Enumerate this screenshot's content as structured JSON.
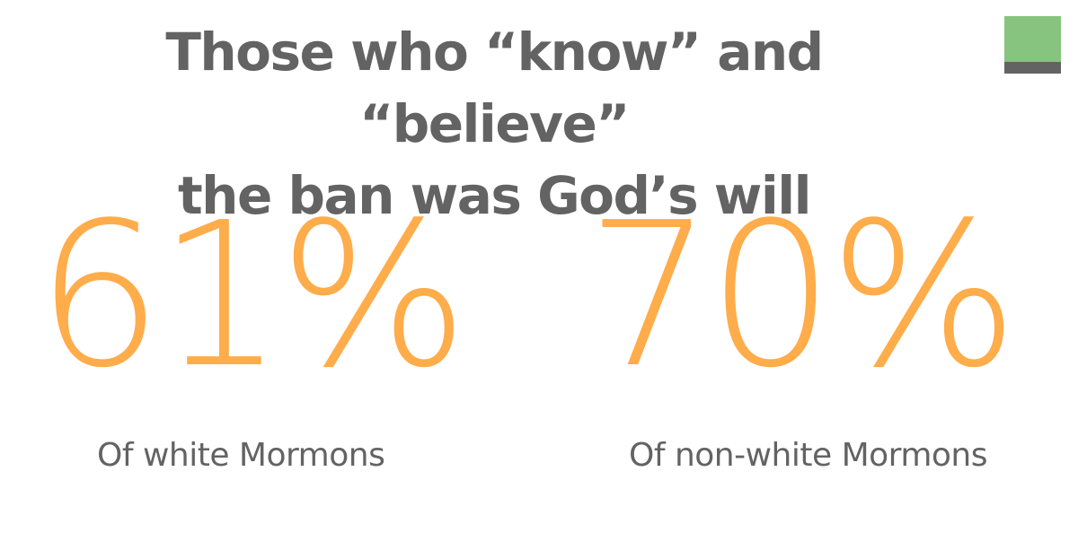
{
  "header": {
    "title_line_1": "Those who “know” and “believe”",
    "title_line_2": "the ban was God’s will"
  },
  "colors": {
    "accent": "#ffac4a",
    "text": "#636363",
    "badge_green": "#86c47f",
    "badge_grey": "#636363"
  },
  "stats": [
    {
      "value": "61%",
      "label": "Of white Mormons"
    },
    {
      "value": "70%",
      "label": "Of non-white Mormons"
    }
  ]
}
